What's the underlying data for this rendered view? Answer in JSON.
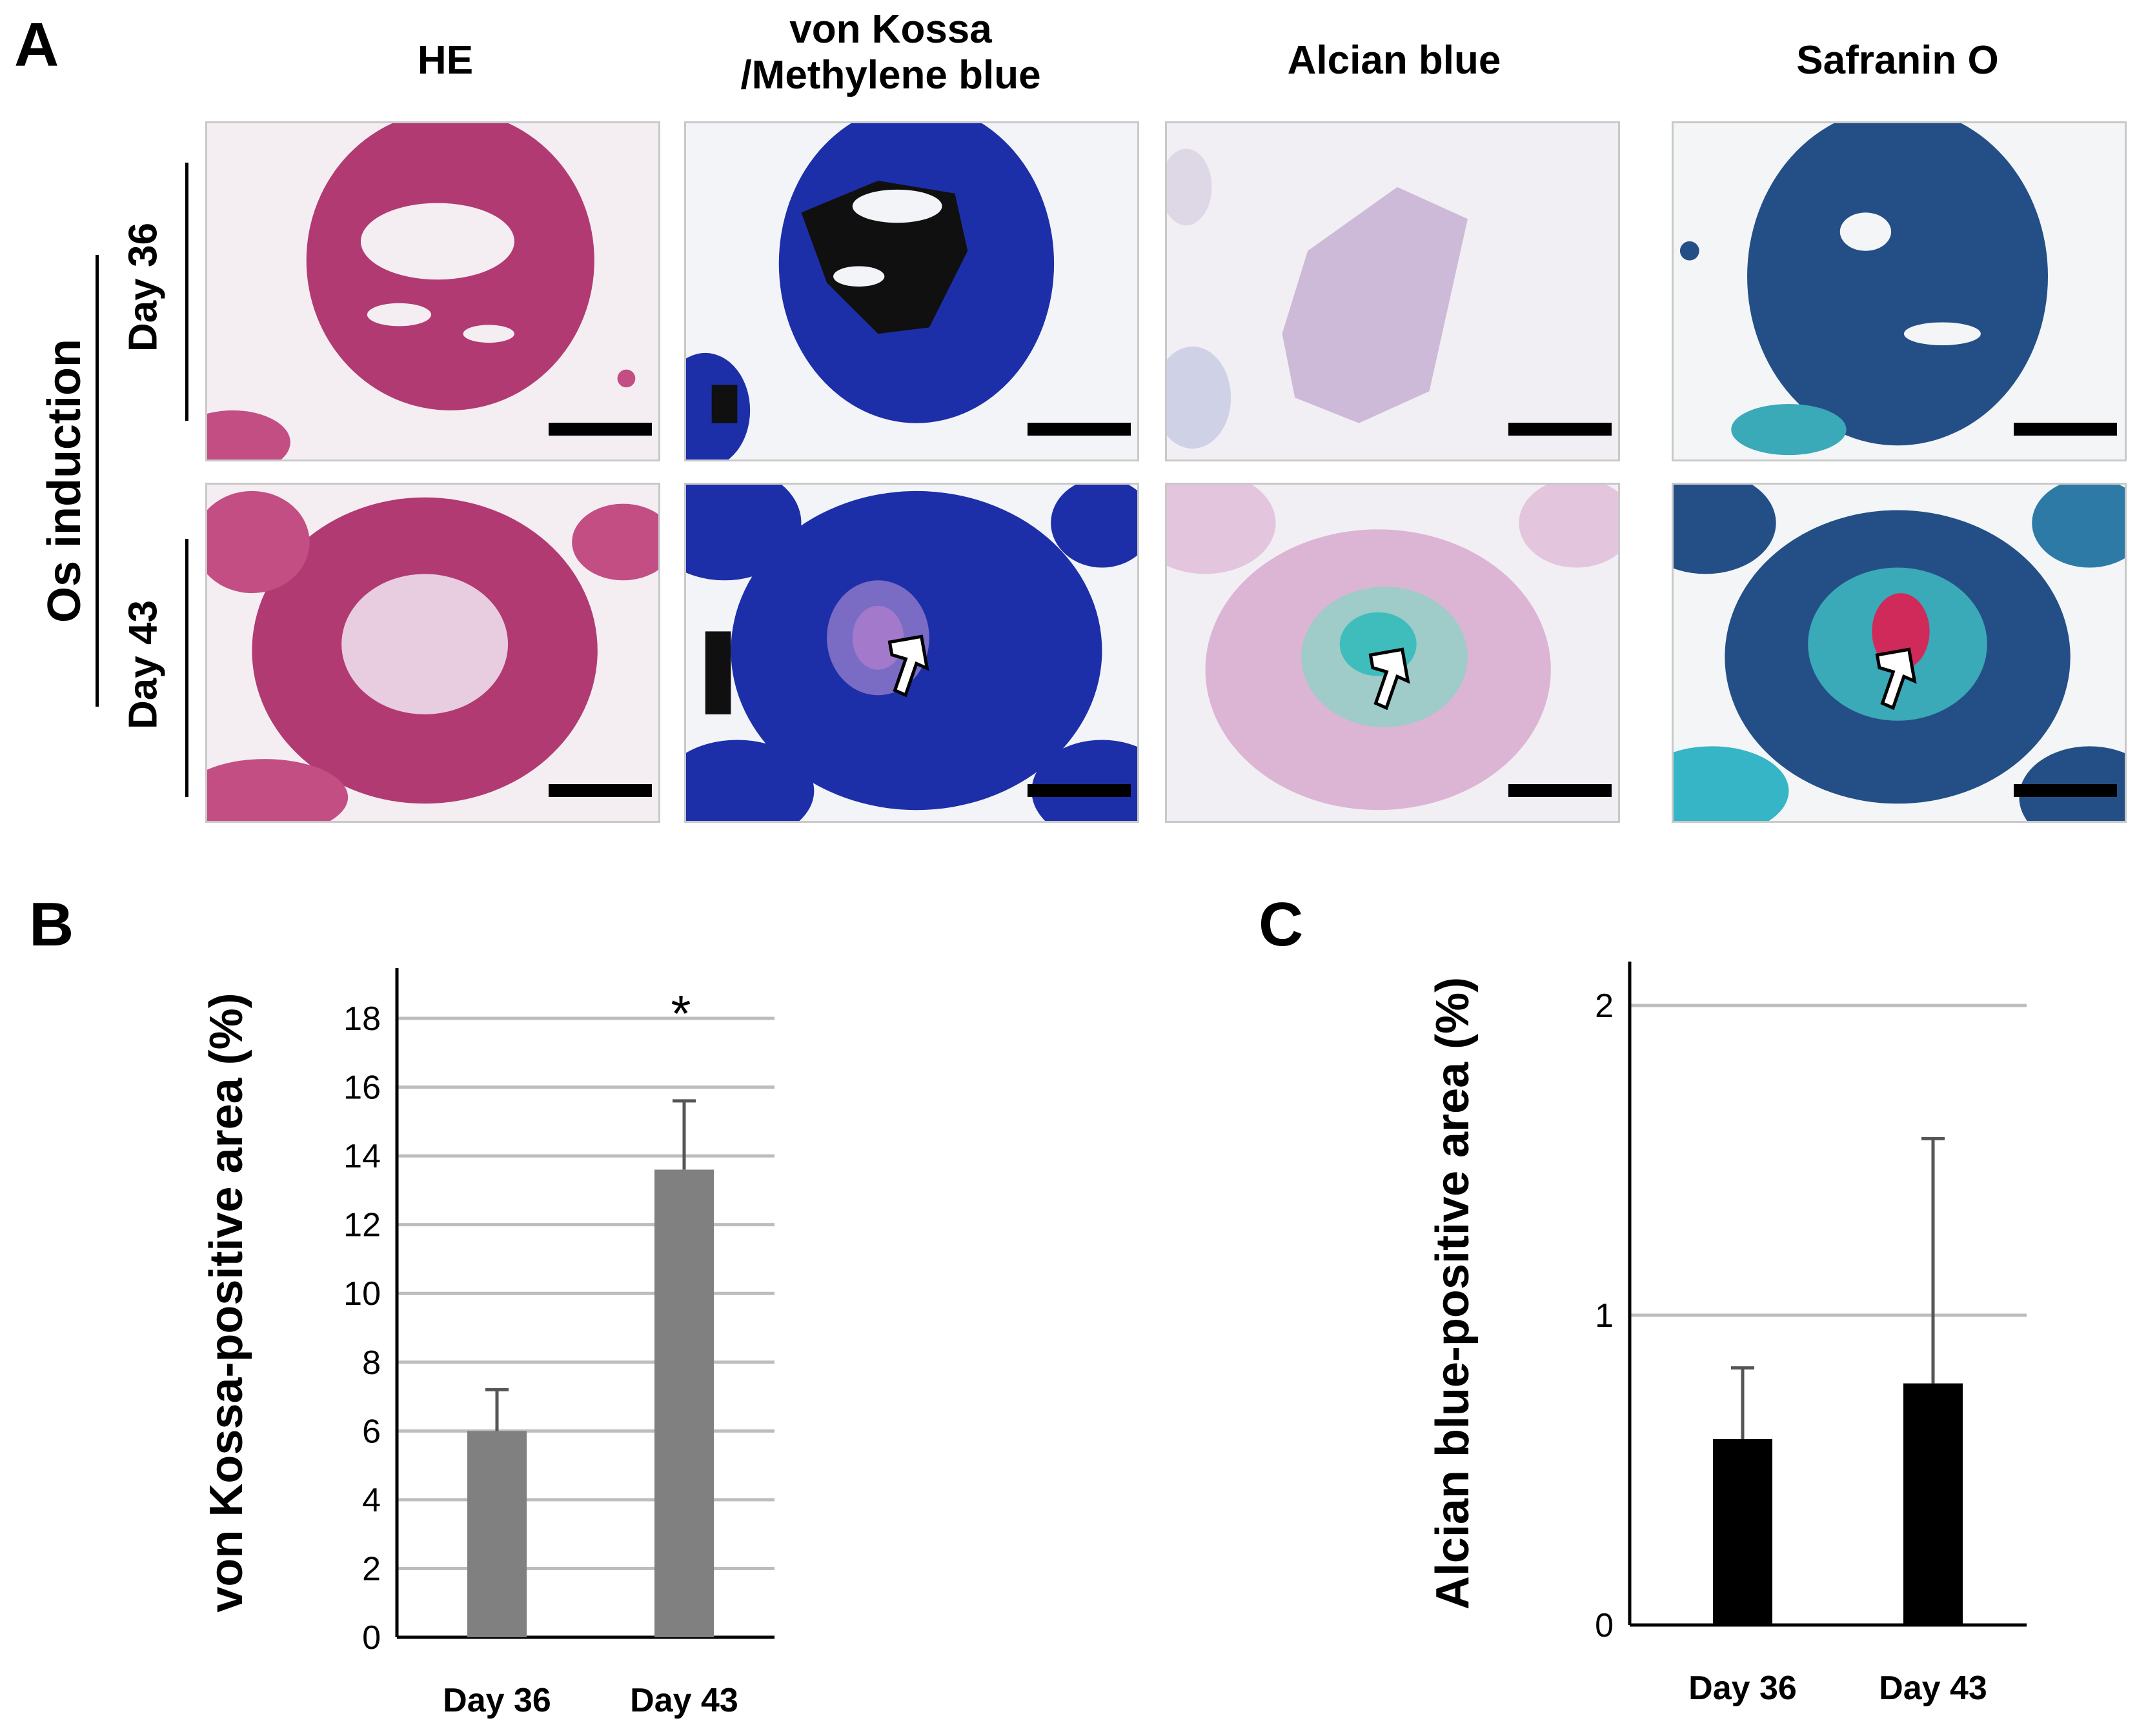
{
  "panel_a": {
    "letter": "A",
    "column_titles": [
      "HE",
      "von Kossa\n/Methylene blue",
      "Alcian blue",
      "Safranin O"
    ],
    "group_label": "Os induction",
    "row_labels": [
      "Day 36",
      "Day 43"
    ]
  },
  "panel_b": {
    "letter": "B"
  },
  "panel_c": {
    "letter": "C"
  },
  "chart_data": [
    {
      "type": "bar",
      "categories": [
        "Day 36",
        "Day 43"
      ],
      "values": [
        6.0,
        13.6
      ],
      "errors": [
        1.2,
        2.0
      ],
      "ylabel": "von Kossa-positive area (%)",
      "ylim": [
        0,
        18
      ],
      "yticks": [
        "0",
        "2",
        "4",
        "6",
        "8",
        "10",
        "12",
        "14",
        "16",
        "18"
      ],
      "grid": true,
      "bar_color": "#808080",
      "annotation": "*"
    },
    {
      "type": "bar",
      "categories": [
        "Day 36",
        "Day 43"
      ],
      "values": [
        0.6,
        0.78
      ],
      "errors": [
        0.23,
        0.79
      ],
      "ylabel": "Alcian blue-positive area (%)",
      "ylim": [
        0,
        2
      ],
      "yticks": [
        "0",
        "1",
        "2"
      ],
      "grid": true,
      "bar_color": "#000000"
    }
  ]
}
